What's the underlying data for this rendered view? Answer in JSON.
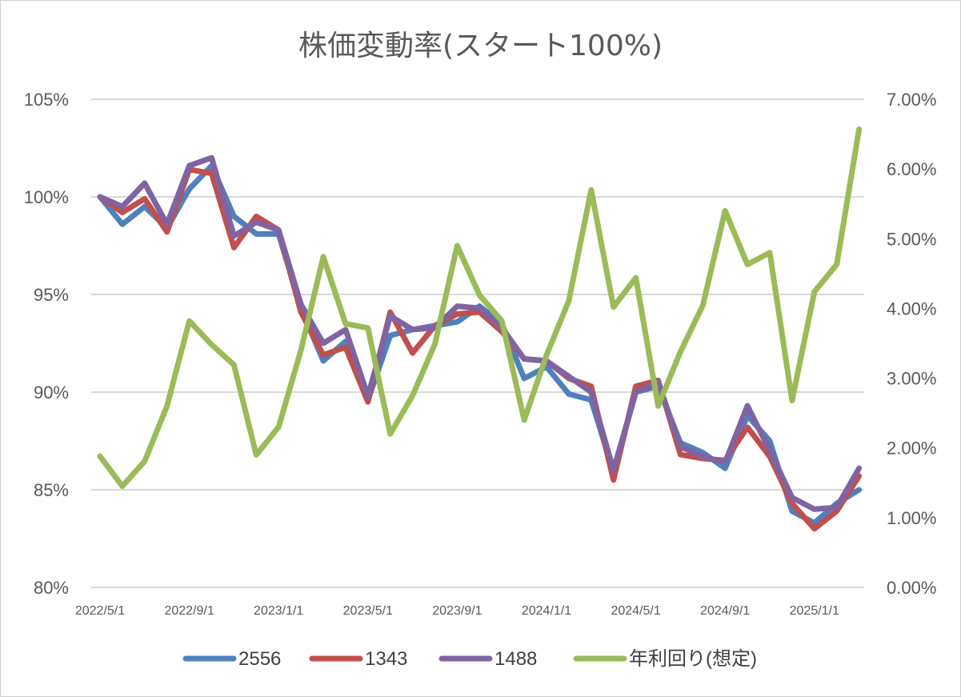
{
  "chart_data": {
    "type": "line",
    "title": "株価変動率(スタート100%)",
    "xlabel": "",
    "ylabel": "",
    "x": [
      "2022/5/1",
      "2022/6/1",
      "2022/7/1",
      "2022/8/1",
      "2022/9/1",
      "2022/10/1",
      "2022/11/1",
      "2022/12/1",
      "2023/1/1",
      "2023/2/1",
      "2023/3/1",
      "2023/4/1",
      "2023/5/1",
      "2023/6/1",
      "2023/7/1",
      "2023/8/1",
      "2023/9/1",
      "2023/10/1",
      "2023/11/1",
      "2023/12/1",
      "2024/1/1",
      "2024/2/1",
      "2024/3/1",
      "2024/4/1",
      "2024/5/1",
      "2024/6/1",
      "2024/7/1",
      "2024/8/1",
      "2024/9/1",
      "2024/10/1",
      "2024/11/1",
      "2024/12/1",
      "2025/1/1",
      "2025/2/1",
      "2025/3/1"
    ],
    "x_tick_labels": [
      "2022/5/1",
      "2022/9/1",
      "2023/1/1",
      "2023/5/1",
      "2023/9/1",
      "2024/1/1",
      "2024/5/1",
      "2024/9/1",
      "2025/1/1"
    ],
    "y_left": {
      "ticks": [
        "105%",
        "100%",
        "95%",
        "90%",
        "85%",
        "80%"
      ],
      "min": 80,
      "max": 105,
      "step": 5
    },
    "y_right": {
      "ticks": [
        "7.00%",
        "6.00%",
        "5.00%",
        "4.00%",
        "3.00%",
        "2.00%",
        "1.00%",
        "0.00%"
      ],
      "min": 0,
      "max": 7,
      "step": 1
    },
    "grid": true,
    "legend_position": "bottom",
    "series": [
      {
        "name": "2556",
        "color": "#4f81bd",
        "axis": "left",
        "values": [
          100.0,
          98.6,
          99.5,
          98.4,
          100.4,
          101.6,
          99.0,
          98.1,
          98.1,
          94.3,
          91.6,
          92.6,
          89.6,
          92.9,
          93.2,
          93.4,
          93.6,
          94.4,
          93.5,
          90.7,
          91.3,
          89.9,
          89.6,
          85.9,
          90.0,
          90.3,
          87.4,
          86.9,
          86.1,
          88.8,
          87.5,
          83.9,
          83.3,
          84.3,
          85.0
        ]
      },
      {
        "name": "1343",
        "color": "#c0504d",
        "axis": "left",
        "values": [
          100.0,
          99.2,
          99.9,
          98.2,
          101.4,
          101.2,
          97.4,
          99.0,
          98.3,
          94.1,
          91.9,
          92.3,
          89.5,
          94.1,
          92.0,
          93.4,
          94.0,
          94.1,
          93.1,
          91.7,
          91.6,
          90.7,
          90.3,
          85.5,
          90.3,
          90.6,
          86.8,
          86.6,
          86.5,
          88.2,
          86.7,
          84.3,
          83.0,
          83.9,
          85.7
        ]
      },
      {
        "name": "1488",
        "color": "#8064a2",
        "axis": "left",
        "values": [
          100.0,
          99.5,
          100.7,
          98.6,
          101.6,
          102.0,
          98.0,
          98.7,
          98.3,
          94.5,
          92.5,
          93.2,
          89.8,
          93.9,
          93.2,
          93.3,
          94.4,
          94.3,
          93.3,
          91.7,
          91.6,
          90.8,
          90.0,
          86.0,
          90.0,
          90.5,
          87.2,
          86.7,
          86.4,
          89.3,
          87.0,
          84.6,
          84.0,
          84.1,
          86.1
        ]
      },
      {
        "name": "年利回り(想定)",
        "color": "#9bbb59",
        "axis": "right",
        "values": [
          1.88,
          1.45,
          1.81,
          2.6,
          3.82,
          3.48,
          3.19,
          1.9,
          2.3,
          3.4,
          4.74,
          3.78,
          3.72,
          2.2,
          2.75,
          3.49,
          4.9,
          4.19,
          3.82,
          2.4,
          3.33,
          4.11,
          5.7,
          4.02,
          4.44,
          2.6,
          3.38,
          4.04,
          5.4,
          4.63,
          4.8,
          2.68,
          4.24,
          4.63,
          6.57
        ]
      }
    ],
    "legend": [
      {
        "label": "2556",
        "color": "#4f81bd"
      },
      {
        "label": "1343",
        "color": "#c0504d"
      },
      {
        "label": "1488",
        "color": "#8064a2"
      },
      {
        "label": "年利回り(想定)",
        "color": "#9bbb59"
      }
    ]
  }
}
